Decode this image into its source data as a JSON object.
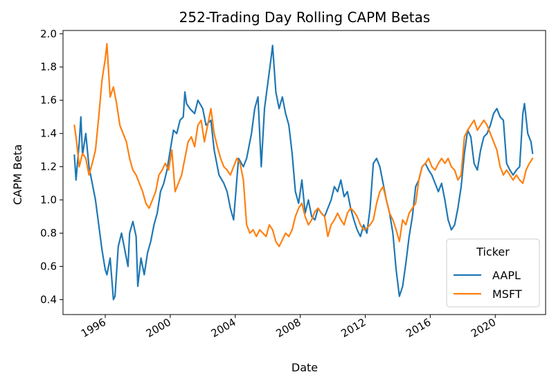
{
  "chart_data": {
    "type": "line",
    "title": "252-Trading Day Rolling CAPM Betas",
    "xlabel": "Date",
    "ylabel": "CAPM Beta",
    "xlim": [
      1993.4,
      2023.1
    ],
    "ylim": [
      0.31,
      2.02
    ],
    "x_ticks": [
      1996,
      2000,
      2004,
      2008,
      2012,
      2016,
      2020
    ],
    "x_tick_labels": [
      "1996",
      "2000",
      "2004",
      "2008",
      "2012",
      "2016",
      "2020"
    ],
    "y_ticks": [
      0.4,
      0.6,
      0.8,
      1.0,
      1.2,
      1.4,
      1.6,
      1.8,
      2.0
    ],
    "y_tick_labels": [
      "0.4",
      "0.6",
      "0.8",
      "1.0",
      "1.2",
      "1.4",
      "1.6",
      "1.8",
      "2.0"
    ],
    "grid": false,
    "legend": {
      "title": "Ticker",
      "placement": "lower right"
    },
    "series": [
      {
        "name": "AAPL",
        "color": "#1f77b4",
        "points": [
          [
            1994.1,
            1.27
          ],
          [
            1994.2,
            1.12
          ],
          [
            1994.4,
            1.35
          ],
          [
            1994.5,
            1.5
          ],
          [
            1994.6,
            1.27
          ],
          [
            1994.8,
            1.4
          ],
          [
            1995.0,
            1.2
          ],
          [
            1995.2,
            1.1
          ],
          [
            1995.4,
            1.0
          ],
          [
            1995.6,
            0.85
          ],
          [
            1995.8,
            0.7
          ],
          [
            1996.0,
            0.58
          ],
          [
            1996.1,
            0.55
          ],
          [
            1996.3,
            0.65
          ],
          [
            1996.5,
            0.4
          ],
          [
            1996.6,
            0.42
          ],
          [
            1996.8,
            0.72
          ],
          [
            1997.0,
            0.8
          ],
          [
            1997.2,
            0.7
          ],
          [
            1997.4,
            0.6
          ],
          [
            1997.5,
            0.8
          ],
          [
            1997.7,
            0.87
          ],
          [
            1997.9,
            0.78
          ],
          [
            1998.0,
            0.48
          ],
          [
            1998.2,
            0.65
          ],
          [
            1998.4,
            0.55
          ],
          [
            1998.6,
            0.68
          ],
          [
            1998.8,
            0.75
          ],
          [
            1999.0,
            0.85
          ],
          [
            1999.2,
            0.92
          ],
          [
            1999.4,
            1.05
          ],
          [
            1999.6,
            1.1
          ],
          [
            1999.8,
            1.18
          ],
          [
            2000.0,
            1.3
          ],
          [
            2000.2,
            1.42
          ],
          [
            2000.4,
            1.4
          ],
          [
            2000.6,
            1.48
          ],
          [
            2000.8,
            1.5
          ],
          [
            2000.9,
            1.65
          ],
          [
            2001.0,
            1.58
          ],
          [
            2001.2,
            1.55
          ],
          [
            2001.5,
            1.52
          ],
          [
            2001.7,
            1.6
          ],
          [
            2002.0,
            1.55
          ],
          [
            2002.2,
            1.45
          ],
          [
            2002.5,
            1.48
          ],
          [
            2002.7,
            1.3
          ],
          [
            2003.0,
            1.15
          ],
          [
            2003.3,
            1.1
          ],
          [
            2003.5,
            1.05
          ],
          [
            2003.7,
            0.95
          ],
          [
            2003.9,
            0.88
          ],
          [
            2004.2,
            1.25
          ],
          [
            2004.5,
            1.2
          ],
          [
            2004.7,
            1.25
          ],
          [
            2005.0,
            1.4
          ],
          [
            2005.2,
            1.55
          ],
          [
            2005.4,
            1.62
          ],
          [
            2005.6,
            1.2
          ],
          [
            2005.8,
            1.55
          ],
          [
            2006.0,
            1.7
          ],
          [
            2006.2,
            1.85
          ],
          [
            2006.3,
            1.93
          ],
          [
            2006.5,
            1.65
          ],
          [
            2006.7,
            1.55
          ],
          [
            2006.9,
            1.62
          ],
          [
            2007.1,
            1.52
          ],
          [
            2007.3,
            1.45
          ],
          [
            2007.5,
            1.28
          ],
          [
            2007.7,
            1.05
          ],
          [
            2007.9,
            0.98
          ],
          [
            2008.1,
            1.12
          ],
          [
            2008.3,
            0.92
          ],
          [
            2008.5,
            1.0
          ],
          [
            2008.7,
            0.9
          ],
          [
            2008.9,
            0.88
          ],
          [
            2009.1,
            0.95
          ],
          [
            2009.3,
            0.92
          ],
          [
            2009.5,
            0.9
          ],
          [
            2009.7,
            0.95
          ],
          [
            2009.9,
            1.0
          ],
          [
            2010.1,
            1.08
          ],
          [
            2010.3,
            1.05
          ],
          [
            2010.5,
            1.12
          ],
          [
            2010.7,
            1.02
          ],
          [
            2010.9,
            1.05
          ],
          [
            2011.1,
            0.95
          ],
          [
            2011.3,
            0.88
          ],
          [
            2011.5,
            0.82
          ],
          [
            2011.7,
            0.78
          ],
          [
            2011.9,
            0.85
          ],
          [
            2012.1,
            0.8
          ],
          [
            2012.3,
            0.95
          ],
          [
            2012.5,
            1.22
          ],
          [
            2012.7,
            1.25
          ],
          [
            2012.9,
            1.2
          ],
          [
            2013.1,
            1.1
          ],
          [
            2013.3,
            1.0
          ],
          [
            2013.5,
            0.92
          ],
          [
            2013.7,
            0.8
          ],
          [
            2013.9,
            0.58
          ],
          [
            2014.1,
            0.42
          ],
          [
            2014.3,
            0.48
          ],
          [
            2014.5,
            0.62
          ],
          [
            2014.7,
            0.78
          ],
          [
            2014.9,
            0.9
          ],
          [
            2015.1,
            1.08
          ],
          [
            2015.3,
            1.12
          ],
          [
            2015.5,
            1.2
          ],
          [
            2015.7,
            1.22
          ],
          [
            2015.9,
            1.18
          ],
          [
            2016.1,
            1.15
          ],
          [
            2016.3,
            1.1
          ],
          [
            2016.5,
            1.05
          ],
          [
            2016.7,
            1.1
          ],
          [
            2016.9,
            1.0
          ],
          [
            2017.1,
            0.88
          ],
          [
            2017.3,
            0.82
          ],
          [
            2017.5,
            0.85
          ],
          [
            2017.7,
            0.95
          ],
          [
            2017.9,
            1.08
          ],
          [
            2018.1,
            1.28
          ],
          [
            2018.3,
            1.42
          ],
          [
            2018.5,
            1.38
          ],
          [
            2018.7,
            1.22
          ],
          [
            2018.9,
            1.18
          ],
          [
            2019.1,
            1.3
          ],
          [
            2019.3,
            1.38
          ],
          [
            2019.5,
            1.4
          ],
          [
            2019.7,
            1.45
          ],
          [
            2019.9,
            1.52
          ],
          [
            2020.1,
            1.55
          ],
          [
            2020.3,
            1.5
          ],
          [
            2020.5,
            1.48
          ],
          [
            2020.7,
            1.22
          ],
          [
            2020.9,
            1.18
          ],
          [
            2021.1,
            1.15
          ],
          [
            2021.3,
            1.18
          ],
          [
            2021.5,
            1.2
          ],
          [
            2021.7,
            1.52
          ],
          [
            2021.8,
            1.58
          ],
          [
            2022.0,
            1.4
          ],
          [
            2022.2,
            1.35
          ],
          [
            2022.3,
            1.28
          ]
        ]
      },
      {
        "name": "MSFT",
        "color": "#ff7f0e",
        "points": [
          [
            1994.1,
            1.45
          ],
          [
            1994.2,
            1.38
          ],
          [
            1994.4,
            1.2
          ],
          [
            1994.6,
            1.28
          ],
          [
            1994.8,
            1.25
          ],
          [
            1995.0,
            1.15
          ],
          [
            1995.2,
            1.22
          ],
          [
            1995.4,
            1.3
          ],
          [
            1995.6,
            1.5
          ],
          [
            1995.8,
            1.72
          ],
          [
            1996.0,
            1.85
          ],
          [
            1996.1,
            1.94
          ],
          [
            1996.3,
            1.62
          ],
          [
            1996.5,
            1.68
          ],
          [
            1996.7,
            1.58
          ],
          [
            1996.9,
            1.45
          ],
          [
            1997.1,
            1.4
          ],
          [
            1997.3,
            1.35
          ],
          [
            1997.5,
            1.25
          ],
          [
            1997.7,
            1.18
          ],
          [
            1997.9,
            1.15
          ],
          [
            1998.1,
            1.1
          ],
          [
            1998.3,
            1.05
          ],
          [
            1998.5,
            0.98
          ],
          [
            1998.7,
            0.95
          ],
          [
            1998.9,
            1.0
          ],
          [
            1999.1,
            1.05
          ],
          [
            1999.3,
            1.15
          ],
          [
            1999.5,
            1.18
          ],
          [
            1999.7,
            1.22
          ],
          [
            1999.9,
            1.18
          ],
          [
            2000.1,
            1.3
          ],
          [
            2000.3,
            1.05
          ],
          [
            2000.5,
            1.1
          ],
          [
            2000.7,
            1.15
          ],
          [
            2000.9,
            1.25
          ],
          [
            2001.1,
            1.35
          ],
          [
            2001.3,
            1.38
          ],
          [
            2001.5,
            1.32
          ],
          [
            2001.7,
            1.45
          ],
          [
            2001.9,
            1.48
          ],
          [
            2002.1,
            1.35
          ],
          [
            2002.3,
            1.45
          ],
          [
            2002.5,
            1.55
          ],
          [
            2002.7,
            1.4
          ],
          [
            2002.9,
            1.32
          ],
          [
            2003.1,
            1.25
          ],
          [
            2003.3,
            1.2
          ],
          [
            2003.5,
            1.18
          ],
          [
            2003.7,
            1.15
          ],
          [
            2003.9,
            1.2
          ],
          [
            2004.1,
            1.25
          ],
          [
            2004.3,
            1.22
          ],
          [
            2004.5,
            1.12
          ],
          [
            2004.7,
            0.85
          ],
          [
            2004.9,
            0.8
          ],
          [
            2005.1,
            0.82
          ],
          [
            2005.3,
            0.78
          ],
          [
            2005.5,
            0.82
          ],
          [
            2005.7,
            0.8
          ],
          [
            2005.9,
            0.78
          ],
          [
            2006.1,
            0.85
          ],
          [
            2006.3,
            0.82
          ],
          [
            2006.5,
            0.75
          ],
          [
            2006.7,
            0.72
          ],
          [
            2006.9,
            0.76
          ],
          [
            2007.1,
            0.8
          ],
          [
            2007.3,
            0.78
          ],
          [
            2007.5,
            0.82
          ],
          [
            2007.7,
            0.9
          ],
          [
            2007.9,
            0.95
          ],
          [
            2008.1,
            0.98
          ],
          [
            2008.3,
            0.9
          ],
          [
            2008.5,
            0.85
          ],
          [
            2008.7,
            0.88
          ],
          [
            2008.9,
            0.93
          ],
          [
            2009.1,
            0.95
          ],
          [
            2009.3,
            0.92
          ],
          [
            2009.5,
            0.9
          ],
          [
            2009.7,
            0.78
          ],
          [
            2009.9,
            0.85
          ],
          [
            2010.1,
            0.88
          ],
          [
            2010.3,
            0.92
          ],
          [
            2010.5,
            0.88
          ],
          [
            2010.7,
            0.85
          ],
          [
            2010.9,
            0.92
          ],
          [
            2011.1,
            0.95
          ],
          [
            2011.3,
            0.93
          ],
          [
            2011.5,
            0.9
          ],
          [
            2011.7,
            0.85
          ],
          [
            2011.9,
            0.82
          ],
          [
            2012.1,
            0.83
          ],
          [
            2012.3,
            0.85
          ],
          [
            2012.5,
            0.88
          ],
          [
            2012.7,
            0.98
          ],
          [
            2012.9,
            1.05
          ],
          [
            2013.1,
            1.08
          ],
          [
            2013.3,
            1.0
          ],
          [
            2013.5,
            0.92
          ],
          [
            2013.7,
            0.88
          ],
          [
            2013.9,
            0.82
          ],
          [
            2014.1,
            0.75
          ],
          [
            2014.3,
            0.88
          ],
          [
            2014.5,
            0.85
          ],
          [
            2014.7,
            0.92
          ],
          [
            2014.9,
            0.95
          ],
          [
            2015.1,
            0.98
          ],
          [
            2015.3,
            1.12
          ],
          [
            2015.5,
            1.2
          ],
          [
            2015.7,
            1.22
          ],
          [
            2015.9,
            1.25
          ],
          [
            2016.1,
            1.2
          ],
          [
            2016.3,
            1.18
          ],
          [
            2016.5,
            1.22
          ],
          [
            2016.7,
            1.25
          ],
          [
            2016.9,
            1.22
          ],
          [
            2017.1,
            1.25
          ],
          [
            2017.3,
            1.2
          ],
          [
            2017.5,
            1.18
          ],
          [
            2017.7,
            1.12
          ],
          [
            2017.9,
            1.15
          ],
          [
            2018.1,
            1.38
          ],
          [
            2018.3,
            1.42
          ],
          [
            2018.5,
            1.45
          ],
          [
            2018.7,
            1.48
          ],
          [
            2018.9,
            1.42
          ],
          [
            2019.1,
            1.45
          ],
          [
            2019.3,
            1.48
          ],
          [
            2019.5,
            1.45
          ],
          [
            2019.7,
            1.4
          ],
          [
            2019.9,
            1.35
          ],
          [
            2020.1,
            1.3
          ],
          [
            2020.3,
            1.2
          ],
          [
            2020.5,
            1.15
          ],
          [
            2020.7,
            1.18
          ],
          [
            2020.9,
            1.15
          ],
          [
            2021.1,
            1.12
          ],
          [
            2021.3,
            1.15
          ],
          [
            2021.5,
            1.12
          ],
          [
            2021.7,
            1.1
          ],
          [
            2021.9,
            1.18
          ],
          [
            2022.1,
            1.22
          ],
          [
            2022.3,
            1.25
          ]
        ]
      }
    ]
  }
}
